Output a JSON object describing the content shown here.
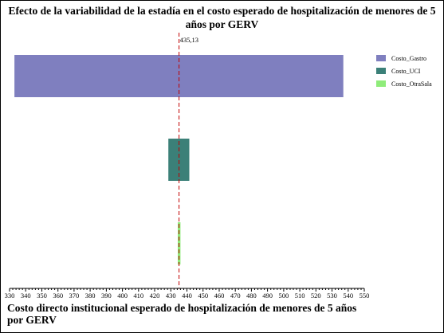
{
  "chart_data": {
    "type": "bar",
    "subtype": "tornado",
    "title": "Efecto de la variabilidad de la estadía en el costo esperado de hospitalización de menores de 5 años por GERV",
    "xlabel": "Costo directo institucional esperado de hospitalización de menores de 5 años por GERV",
    "ylabel": "",
    "xlim": [
      330,
      550
    ],
    "x_ticks": [
      330,
      340,
      350,
      360,
      370,
      380,
      390,
      400,
      410,
      420,
      430,
      440,
      450,
      460,
      470,
      480,
      490,
      500,
      510,
      520,
      530,
      540,
      550
    ],
    "reference_value": 435.13,
    "reference_label": "435,13",
    "bars": [
      {
        "name": "Costo_Gastro",
        "low": 333,
        "high": 537,
        "color": "#7f7fbf"
      },
      {
        "name": "Costo_UCI",
        "low": 428.5,
        "high": 441.5,
        "color": "#3b8078"
      },
      {
        "name": "Costo_OtraSala",
        "low": 434.3,
        "high": 436.0,
        "color": "#8fec7a"
      }
    ],
    "legend_position": "right",
    "grid": false,
    "reference_line_color": "#c00000"
  }
}
